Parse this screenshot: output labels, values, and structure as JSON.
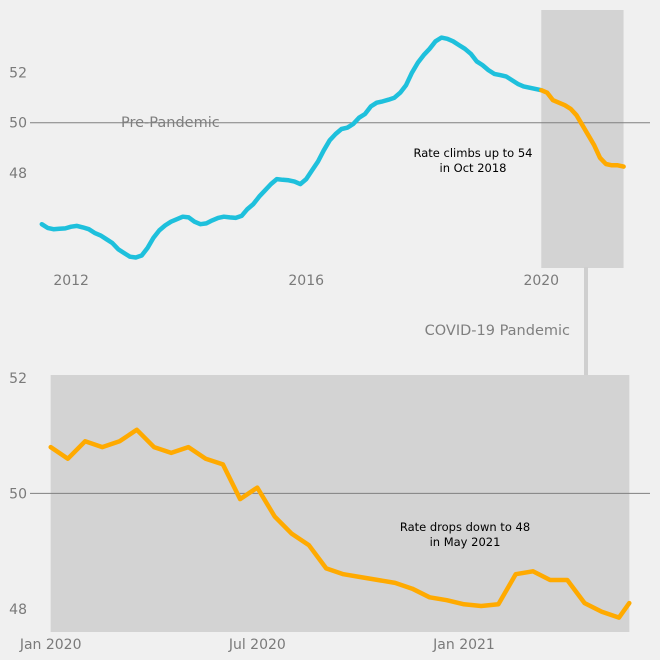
{
  "chart_data": [
    {
      "type": "line",
      "x_unit": "year",
      "xlim": [
        2011.3,
        2021.85
      ],
      "ylim": [
        44.2,
        54.5
      ],
      "xticks": [
        2012,
        2016,
        2020
      ],
      "xtick_labels": [
        "2012",
        "2016",
        "2020"
      ],
      "yticks": [
        48,
        50,
        52
      ],
      "ytick_labels": [
        "48",
        "50",
        "52"
      ],
      "reference_line": 50,
      "region_label": "Pre-Pandemic",
      "shaded_range": [
        2020.0,
        2021.4
      ],
      "annotation": [
        "Rate climbs up to 54",
        "in Oct 2018"
      ],
      "series": [
        {
          "color": "#1ec0dc",
          "x": [
            2011.5,
            2011.6,
            2011.7,
            2011.8,
            2011.9,
            2012.0,
            2012.1,
            2012.2,
            2012.3,
            2012.4,
            2012.5,
            2012.6,
            2012.7,
            2012.8,
            2012.9,
            2013.0,
            2013.1,
            2013.2,
            2013.3,
            2013.4,
            2013.5,
            2013.6,
            2013.7,
            2013.8,
            2013.9,
            2014.0,
            2014.1,
            2014.2,
            2014.3,
            2014.4,
            2014.5,
            2014.6,
            2014.7,
            2014.8,
            2014.9,
            2015.0,
            2015.1,
            2015.2,
            2015.3,
            2015.4,
            2015.5,
            2015.6,
            2015.7,
            2015.8,
            2015.9,
            2016.0,
            2016.1,
            2016.2,
            2016.3,
            2016.4,
            2016.5,
            2016.6,
            2016.7,
            2016.8,
            2016.9,
            2017.0,
            2017.1,
            2017.2,
            2017.3,
            2017.4,
            2017.5,
            2017.6,
            2017.7,
            2017.8,
            2017.9,
            2018.0,
            2018.1,
            2018.2,
            2018.3,
            2018.4,
            2018.5,
            2018.6,
            2018.7,
            2018.8,
            2018.9,
            2019.0,
            2019.1,
            2019.2,
            2019.3,
            2019.4,
            2019.5,
            2019.6,
            2019.7,
            2019.8,
            2019.9,
            2020.0
          ],
          "y": [
            45.95,
            45.8,
            45.75,
            45.77,
            45.78,
            45.85,
            45.88,
            45.82,
            45.75,
            45.6,
            45.5,
            45.35,
            45.2,
            44.95,
            44.8,
            44.65,
            44.62,
            44.7,
            45.0,
            45.4,
            45.7,
            45.9,
            46.05,
            46.15,
            46.25,
            46.22,
            46.05,
            45.95,
            45.98,
            46.1,
            46.2,
            46.25,
            46.22,
            46.2,
            46.28,
            46.55,
            46.75,
            47.05,
            47.3,
            47.55,
            47.75,
            47.72,
            47.7,
            47.65,
            47.55,
            47.75,
            48.1,
            48.45,
            48.9,
            49.3,
            49.55,
            49.75,
            49.8,
            49.95,
            50.2,
            50.35,
            50.65,
            50.8,
            50.85,
            50.92,
            51.0,
            51.2,
            51.5,
            52.0,
            52.4,
            52.7,
            52.95,
            53.25,
            53.4,
            53.35,
            53.25,
            53.1,
            52.95,
            52.75,
            52.45,
            52.3,
            52.1,
            51.95,
            51.9,
            51.85,
            51.7,
            51.55,
            51.45,
            51.4,
            51.35,
            51.3
          ]
        },
        {
          "color": "#ffaa00",
          "x": [
            2020.0,
            2020.1,
            2020.2,
            2020.3,
            2020.4,
            2020.5,
            2020.6,
            2020.7,
            2020.8,
            2020.9,
            2021.0,
            2021.1,
            2021.2,
            2021.3,
            2021.4
          ],
          "y": [
            51.3,
            51.2,
            50.9,
            50.8,
            50.7,
            50.55,
            50.3,
            49.9,
            49.5,
            49.1,
            48.6,
            48.35,
            48.3,
            48.3,
            48.25
          ]
        }
      ]
    },
    {
      "type": "line",
      "x_unit": "months since Jan 2020",
      "xlim": [
        -0.6,
        17.4
      ],
      "ylim": [
        47.6,
        52.1
      ],
      "xticks": [
        0,
        6,
        12
      ],
      "xtick_labels": [
        "Jan 2020",
        "Jul 2020",
        "Jan 2021"
      ],
      "yticks": [
        48,
        50,
        52
      ],
      "ytick_labels": [
        "48",
        "50",
        "52"
      ],
      "reference_line": 50,
      "region_label": "COVID-19 Pandemic",
      "shaded_range": [
        0,
        16.8
      ],
      "annotation": [
        "Rate drops down to 48",
        "in May 2021"
      ],
      "series": [
        {
          "color": "#ffaa00",
          "x": [
            0.0,
            0.5,
            1.0,
            1.5,
            2.0,
            2.5,
            3.0,
            3.5,
            4.0,
            4.5,
            5.0,
            5.5,
            6.0,
            6.5,
            7.0,
            7.5,
            8.0,
            8.5,
            9.0,
            9.5,
            10.0,
            10.5,
            11.0,
            11.5,
            12.0,
            12.5,
            13.0,
            13.5,
            14.0,
            14.5,
            15.0,
            15.5,
            16.0,
            16.5,
            16.8
          ],
          "y": [
            50.8,
            50.6,
            50.9,
            50.8,
            50.9,
            51.1,
            50.8,
            50.7,
            50.8,
            50.6,
            50.5,
            49.9,
            50.1,
            49.6,
            49.3,
            49.1,
            48.7,
            48.6,
            48.55,
            48.5,
            48.45,
            48.35,
            48.2,
            48.15,
            48.08,
            48.05,
            48.08,
            48.6,
            48.65,
            48.5,
            48.5,
            48.1,
            47.95,
            47.85,
            48.1
          ]
        }
      ]
    }
  ]
}
